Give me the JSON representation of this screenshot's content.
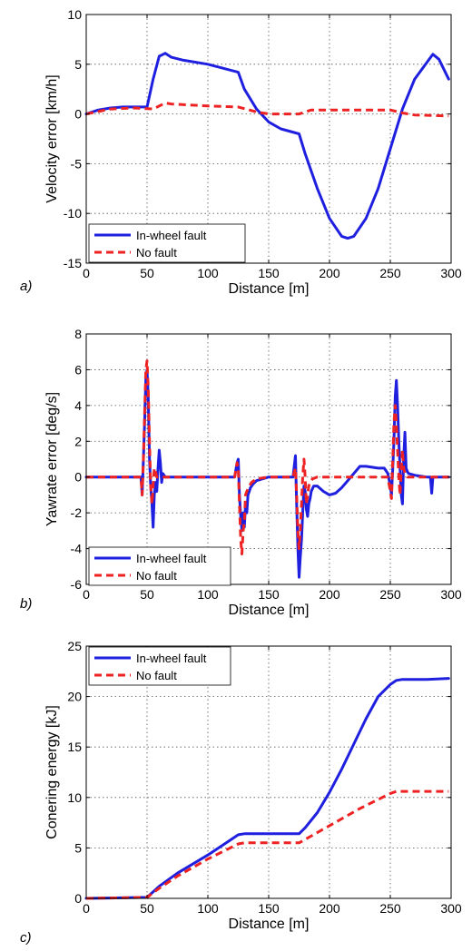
{
  "chart_data": [
    {
      "type": "line",
      "panel_label": "a)",
      "xlabel": "Distance [m]",
      "ylabel": "Velocity error [km/h]",
      "xlim": [
        0,
        300
      ],
      "ylim": [
        -15,
        10
      ],
      "xticks": [
        0,
        50,
        100,
        150,
        200,
        250,
        300
      ],
      "yticks": [
        -15,
        -10,
        -5,
        0,
        5,
        10
      ],
      "grid": true,
      "legend_position": "bottom-left",
      "series": [
        {
          "name": "In-wheel fault",
          "color": "#1f1fe0",
          "style": "solid",
          "x": [
            0,
            10,
            20,
            30,
            40,
            50,
            55,
            60,
            65,
            70,
            80,
            100,
            125,
            130,
            140,
            150,
            160,
            175,
            180,
            190,
            200,
            210,
            215,
            220,
            230,
            240,
            250,
            260,
            270,
            285,
            290,
            298
          ],
          "y": [
            0,
            0.4,
            0.6,
            0.7,
            0.7,
            0.7,
            3.5,
            5.8,
            6.1,
            5.7,
            5.4,
            5.0,
            4.2,
            2.5,
            0.5,
            -0.8,
            -1.5,
            -2.0,
            -4.0,
            -7.5,
            -10.5,
            -12.3,
            -12.5,
            -12.3,
            -10.5,
            -7.5,
            -3.5,
            0.5,
            3.5,
            6.0,
            5.5,
            3.5
          ]
        },
        {
          "name": "No fault",
          "color": "#ee2222",
          "style": "dashed",
          "x": [
            0,
            20,
            40,
            55,
            65,
            70,
            100,
            125,
            140,
            150,
            175,
            185,
            200,
            250,
            260,
            270,
            298
          ],
          "y": [
            0,
            0.5,
            0.6,
            0.5,
            1.1,
            1.0,
            0.8,
            0.7,
            0.2,
            0.0,
            0.0,
            0.4,
            0.4,
            0.4,
            0.1,
            -0.1,
            -0.2
          ]
        }
      ]
    },
    {
      "type": "line",
      "panel_label": "b)",
      "xlabel": "Distance [m]",
      "ylabel": "Yawrate error [deg/s]",
      "xlim": [
        0,
        300
      ],
      "ylim": [
        -6,
        8
      ],
      "xticks": [
        0,
        50,
        100,
        150,
        200,
        250,
        300
      ],
      "yticks": [
        -6,
        -4,
        -2,
        0,
        2,
        4,
        6,
        8
      ],
      "grid": true,
      "legend_position": "bottom-left",
      "series": [
        {
          "name": "In-wheel fault",
          "color": "#1f1fe0",
          "style": "solid",
          "x": [
            0,
            45,
            46,
            47,
            48,
            49,
            50,
            51,
            52,
            53,
            54,
            55,
            56,
            57,
            58,
            59,
            60,
            61,
            62,
            63,
            65,
            70,
            100,
            122,
            124,
            125,
            126,
            127,
            128,
            129,
            130,
            131,
            132,
            133,
            134,
            135,
            137,
            140,
            150,
            170,
            172,
            173,
            174,
            175,
            176,
            177,
            178,
            179,
            180,
            181,
            182,
            183,
            184,
            185,
            187,
            190,
            195,
            200,
            205,
            210,
            215,
            220,
            225,
            230,
            240,
            245,
            248,
            250,
            251,
            252,
            253,
            254,
            255,
            256,
            257,
            258,
            259,
            260,
            261,
            262,
            263,
            264,
            265,
            270,
            280,
            283,
            284,
            285,
            286,
            290,
            298
          ],
          "y": [
            0,
            0,
            -1.0,
            1.0,
            3.0,
            5.5,
            6.0,
            4.5,
            1.0,
            -0.5,
            -1.5,
            -2.8,
            -1.0,
            -0.3,
            -0.8,
            0.5,
            1.5,
            0.8,
            -0.3,
            0.2,
            0.0,
            0.0,
            0.0,
            0.0,
            0.8,
            1.0,
            -1.0,
            -2.2,
            -3.0,
            -2.0,
            -2.8,
            -1.5,
            -2.0,
            -1.0,
            -0.8,
            -0.6,
            -0.4,
            -0.2,
            0.0,
            0.0,
            1.2,
            -1.5,
            -4.0,
            -5.6,
            -4.5,
            -3.5,
            -2.0,
            -0.5,
            -0.8,
            -1.8,
            -2.2,
            -1.5,
            -1.2,
            -0.8,
            -0.5,
            -0.5,
            -0.8,
            -1.0,
            -0.9,
            -0.6,
            -0.2,
            0.2,
            0.6,
            0.6,
            0.5,
            0.5,
            0.2,
            -0.5,
            -1.0,
            0.5,
            2.0,
            4.5,
            5.4,
            4.0,
            2.0,
            0.5,
            -1.0,
            -1.5,
            1.0,
            2.5,
            0.5,
            0.3,
            0.2,
            0.1,
            0.0,
            0.0,
            -0.9,
            0.0,
            0.0,
            0.0,
            0.0
          ]
        },
        {
          "name": "No fault",
          "color": "#ee2222",
          "style": "dashed",
          "x": [
            0,
            45,
            46,
            47,
            48,
            49,
            50,
            51,
            52,
            53,
            54,
            55,
            56,
            57,
            58,
            60,
            70,
            100,
            122,
            124,
            125,
            126,
            127,
            128,
            129,
            130,
            131,
            132,
            134,
            136,
            140,
            150,
            170,
            172,
            173,
            174,
            175,
            176,
            177,
            178,
            179,
            180,
            181,
            182,
            183,
            184,
            186,
            190,
            200,
            220,
            240,
            248,
            250,
            251,
            252,
            253,
            254,
            255,
            256,
            257,
            258,
            259,
            260,
            261,
            262,
            264,
            270,
            298
          ],
          "y": [
            0,
            0,
            -1.0,
            1.0,
            3.5,
            6.0,
            6.5,
            5.0,
            2.0,
            -0.5,
            -1.5,
            -0.5,
            0.5,
            0.3,
            0.0,
            0.0,
            0.0,
            0.0,
            0.0,
            0.8,
            0.5,
            -1.5,
            -3.5,
            -4.3,
            -3.0,
            -2.5,
            -1.0,
            -0.8,
            -0.5,
            -0.3,
            -0.1,
            0.0,
            0.0,
            0.5,
            -1.0,
            -3.0,
            -4.0,
            -3.0,
            -1.5,
            0.0,
            1.0,
            0.0,
            -1.5,
            -1.0,
            -0.5,
            -0.3,
            -0.1,
            0.0,
            0.0,
            0.0,
            0.0,
            0.0,
            -0.8,
            -1.2,
            1.0,
            3.0,
            4.0,
            3.0,
            1.5,
            0.0,
            -1.0,
            0.5,
            1.5,
            0.5,
            0.2,
            0.0,
            0.0,
            0.0
          ]
        }
      ]
    },
    {
      "type": "line",
      "panel_label": "c)",
      "xlabel": "Distance [m]",
      "ylabel": "Conering energy [kJ]",
      "xlim": [
        0,
        300
      ],
      "ylim": [
        0,
        25
      ],
      "xticks": [
        0,
        50,
        100,
        150,
        200,
        250,
        300
      ],
      "yticks": [
        0,
        5,
        10,
        15,
        20,
        25
      ],
      "grid": true,
      "legend_position": "top-left",
      "series": [
        {
          "name": "In-wheel fault",
          "color": "#1f1fe0",
          "style": "solid",
          "x": [
            0,
            50,
            60,
            75,
            100,
            125,
            130,
            150,
            175,
            180,
            190,
            200,
            210,
            220,
            230,
            240,
            250,
            255,
            260,
            280,
            298
          ],
          "y": [
            0,
            0.1,
            1.2,
            2.5,
            4.3,
            6.3,
            6.4,
            6.4,
            6.4,
            7.0,
            8.5,
            10.5,
            12.8,
            15.3,
            17.8,
            20.0,
            21.2,
            21.6,
            21.7,
            21.7,
            21.8
          ]
        },
        {
          "name": "No fault",
          "color": "#ee2222",
          "style": "dashed",
          "x": [
            0,
            50,
            60,
            75,
            100,
            125,
            130,
            150,
            175,
            200,
            225,
            250,
            255,
            260,
            298
          ],
          "y": [
            0,
            0.1,
            1.0,
            2.2,
            3.9,
            5.4,
            5.5,
            5.5,
            5.5,
            7.2,
            8.9,
            10.4,
            10.6,
            10.6,
            10.6
          ]
        }
      ]
    }
  ]
}
